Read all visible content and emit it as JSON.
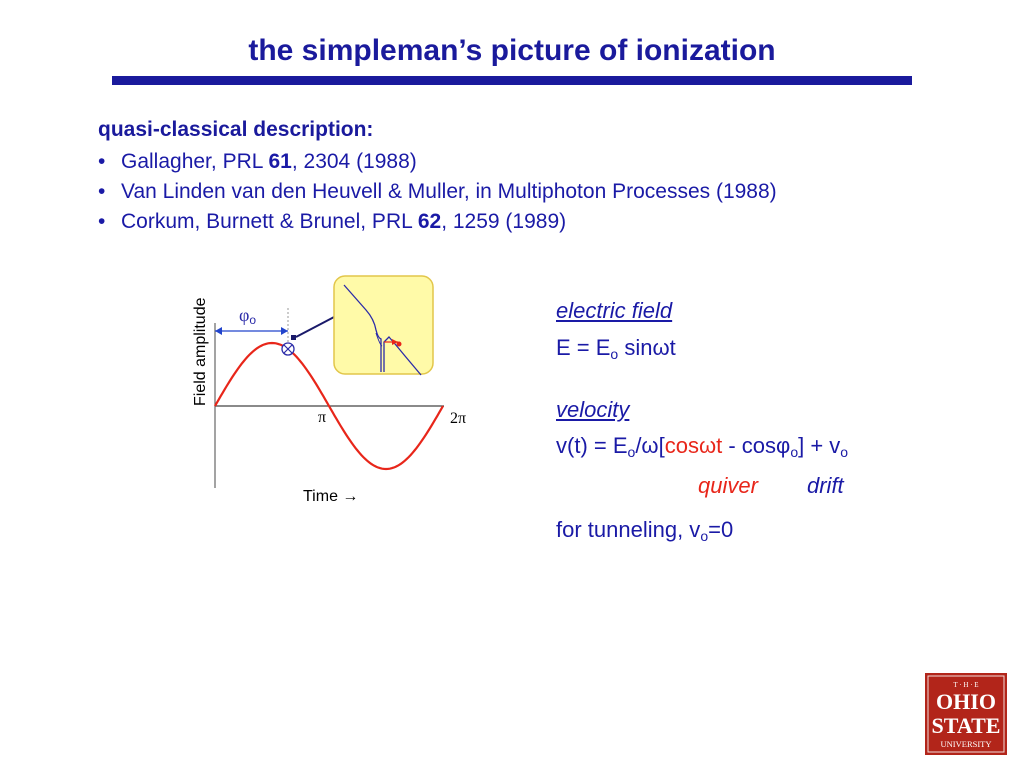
{
  "slide": {
    "title": "the simpleman’s picture of ionization"
  },
  "refs": {
    "heading": "quasi-classical description:",
    "bullet": "•",
    "items": [
      {
        "pre": "Gallagher, PRL ",
        "vol": "61",
        "post": ", 2304 (1988)"
      },
      {
        "pre": "Van Linden van den Heuvell & Muller, in Multiphoton Processes (1988)",
        "vol": "",
        "post": ""
      },
      {
        "pre": "Corkum, Burnett & Brunel, PRL ",
        "vol": "62",
        "post": ", 1259 (1989)"
      }
    ]
  },
  "figure": {
    "y_label": "Field amplitude",
    "x_label": "Time →",
    "tick_pi": "π",
    "tick_2pi": "2π",
    "phi": "φ",
    "phi_sub": "o",
    "curve_color": "#e8261a",
    "inset_bg": "#fffaa8",
    "inset_border": "#e2c64a"
  },
  "electric_field": {
    "heading": "electric field",
    "eq_left": "E = E",
    "eq_sub": "o",
    "eq_right": " sinωt"
  },
  "velocity": {
    "heading": "velocity",
    "p1": "v(t) = E",
    "s1": "o",
    "p2": "/ω[",
    "quiver_term": "cosωt",
    "p3": " - cosφ",
    "s2": "o",
    "p4": "] + v",
    "s3": "o",
    "quiver_label": "quiver",
    "drift_label": "drift"
  },
  "tunneling": {
    "p1": "for tunneling, v",
    "sub": "o",
    "p2": "=0"
  },
  "logo": {
    "top": "T · H · E",
    "line1": "OHIO",
    "line2": "STATE",
    "line3": "UNIVERSITY",
    "color": "#b2251a"
  }
}
